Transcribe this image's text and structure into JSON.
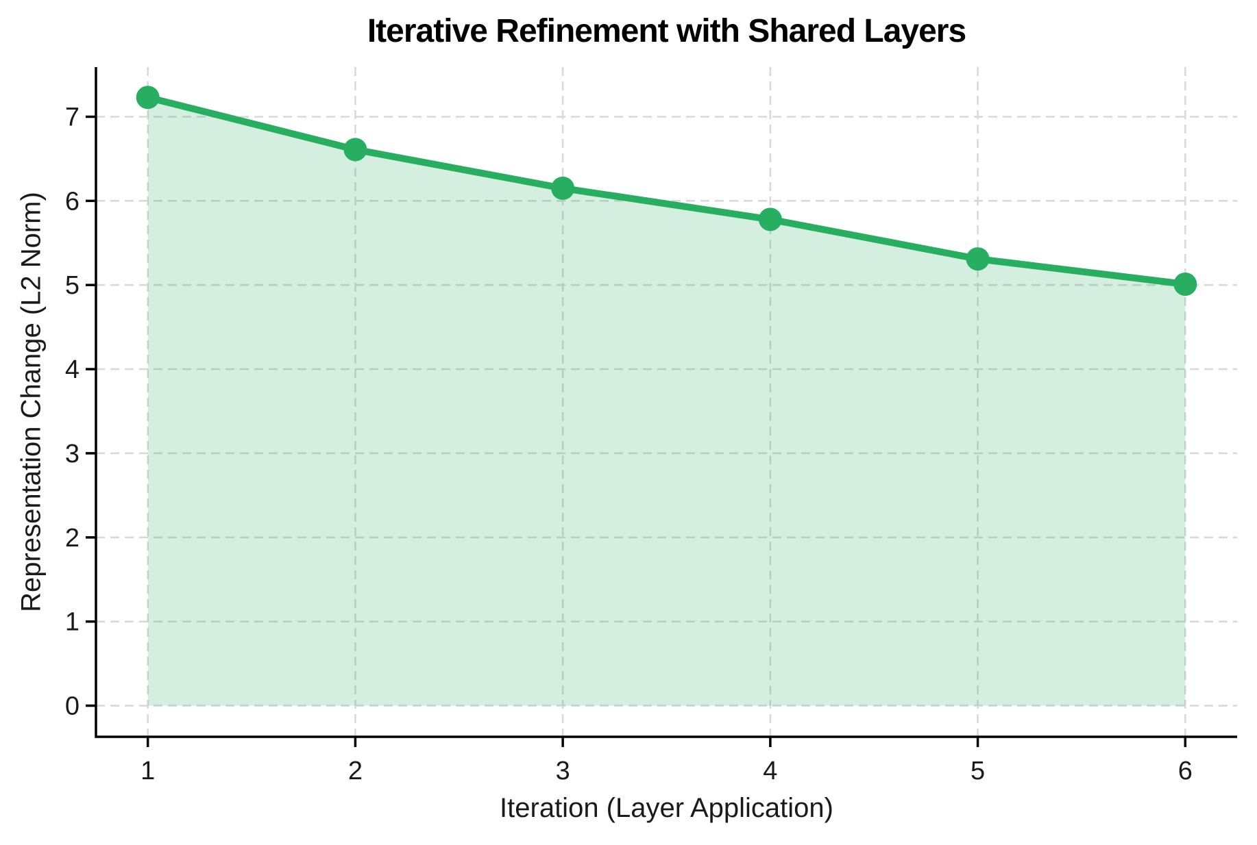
{
  "chart_data": {
    "type": "area",
    "title": "Iterative Refinement with Shared Layers",
    "xlabel": "Iteration (Layer Application)",
    "ylabel": "Representation Change (L2 Norm)",
    "x": [
      1,
      2,
      3,
      4,
      5,
      6
    ],
    "series": [
      {
        "name": "Representation Change (L2 Norm)",
        "values": [
          7.23,
          6.61,
          6.15,
          5.78,
          5.31,
          5.01
        ]
      }
    ],
    "x_ticks": [
      "1",
      "2",
      "3",
      "4",
      "5",
      "6"
    ],
    "y_ticks": [
      "0",
      "1",
      "2",
      "3",
      "4",
      "5",
      "6",
      "7"
    ],
    "x_tick_values": [
      1,
      2,
      3,
      4,
      5,
      6
    ],
    "y_tick_values": [
      0,
      1,
      2,
      3,
      4,
      5,
      6,
      7
    ],
    "xlim": [
      0.75,
      6.25
    ],
    "ylim": [
      -0.37,
      7.59
    ],
    "fill_baseline": 0,
    "grid": true,
    "grid_style": "dashed",
    "legend": null,
    "colors": {
      "line": "#27ae60",
      "marker": "#27ae60",
      "fill": "#27ae60",
      "fill_opacity": 0.2,
      "grid": "#d9d9d9",
      "axis": "#000000",
      "tick_text": "#1a1a1a",
      "background": "#ffffff"
    }
  }
}
